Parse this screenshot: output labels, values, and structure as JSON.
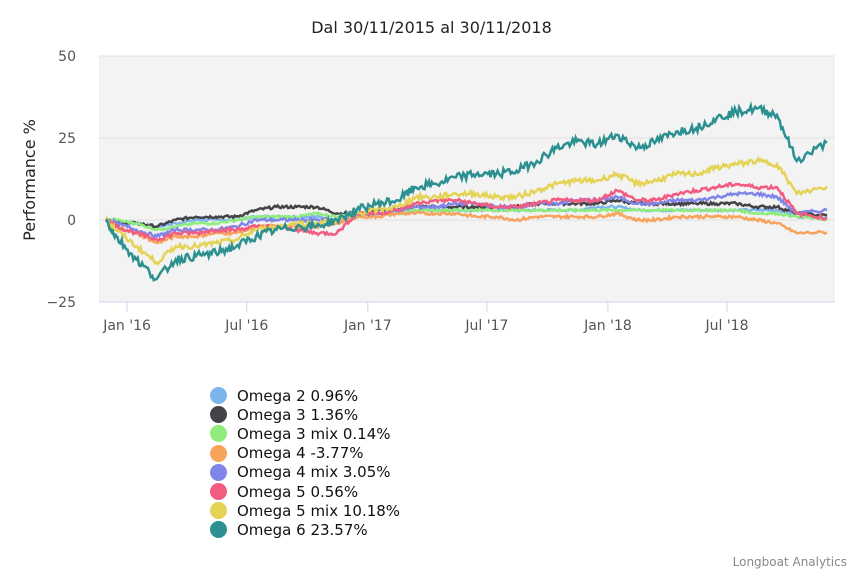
{
  "chart_data": {
    "type": "line",
    "title": "Dal 30/11/2015 al 30/11/2018",
    "ylabel": "Performance %",
    "xlabel": "",
    "ylim": [
      -25,
      50
    ],
    "yticks": [
      "50",
      "25",
      "0",
      "−25"
    ],
    "ytick_values": [
      50,
      25,
      0,
      -25
    ],
    "xticks": [
      "Jan '16",
      "Jul '16",
      "Jan '17",
      "Jul '17",
      "Jan '18",
      "Jul '18"
    ],
    "xtick_dates": [
      "2016-01-01",
      "2016-07-01",
      "2017-01-01",
      "2017-07-01",
      "2018-01-01",
      "2018-07-01"
    ],
    "xrange": [
      "2015-11-30",
      "2018-11-30"
    ],
    "grid": true,
    "legend_position": "bottom-left",
    "x": [
      "2015-11",
      "2015-12",
      "2016-01",
      "2016-02",
      "2016-03",
      "2016-04",
      "2016-05",
      "2016-06",
      "2016-07",
      "2016-08",
      "2016-09",
      "2016-10",
      "2016-11",
      "2016-12",
      "2017-01",
      "2017-02",
      "2017-03",
      "2017-04",
      "2017-05",
      "2017-06",
      "2017-07",
      "2017-08",
      "2017-09",
      "2017-10",
      "2017-11",
      "2017-12",
      "2018-01",
      "2018-02",
      "2018-03",
      "2018-04",
      "2018-05",
      "2018-06",
      "2018-07",
      "2018-08",
      "2018-09",
      "2018-10",
      "2018-11"
    ],
    "series": [
      {
        "name": "Omega 2",
        "label": "Omega 2 0.96%",
        "color": "#7cb5ec",
        "values": [
          0,
          -1,
          -1,
          -2,
          -1,
          0,
          0,
          0,
          1,
          1,
          1,
          1,
          0,
          2,
          2,
          2,
          3,
          3,
          3,
          3,
          3,
          3,
          3,
          3,
          3,
          4,
          4,
          3,
          3,
          3,
          3,
          3,
          3,
          3,
          3,
          1,
          0.96
        ]
      },
      {
        "name": "Omega 3",
        "label": "Omega 3 1.36%",
        "color": "#434348",
        "values": [
          0,
          -1,
          -1,
          -2,
          0,
          1,
          1,
          1,
          3,
          4,
          4,
          4,
          2,
          2,
          3,
          3,
          4,
          4,
          4,
          4,
          4,
          4,
          5,
          5,
          5,
          5,
          6,
          5,
          5,
          5,
          5,
          5,
          5,
          4,
          4,
          2,
          1.36
        ]
      },
      {
        "name": "Omega 3 mix",
        "label": "Omega 3 mix 0.14%",
        "color": "#90ed7d",
        "values": [
          0,
          0,
          -1,
          -3,
          -2,
          -1,
          -1,
          0,
          1,
          1,
          1,
          2,
          1,
          2,
          2,
          2,
          3,
          3,
          3,
          3,
          3,
          3,
          3,
          3,
          3,
          3,
          3,
          3,
          3,
          3,
          3,
          3,
          3,
          2,
          2,
          1,
          0.14
        ]
      },
      {
        "name": "Omega 4",
        "label": "Omega 4 -3.77%",
        "color": "#f7a35c",
        "values": [
          0,
          -2,
          -4,
          -7,
          -5,
          -5,
          -4,
          -4,
          -2,
          -2,
          -2,
          -2,
          -1,
          1,
          1,
          2,
          2,
          2,
          2,
          1,
          1,
          0,
          1,
          1,
          1,
          1,
          2,
          0,
          0,
          1,
          1,
          1,
          1,
          0,
          -1,
          -4,
          -3.77
        ]
      },
      {
        "name": "Omega 4 mix",
        "label": "Omega 4 mix 3.05%",
        "color": "#8085e9",
        "values": [
          0,
          -1,
          -3,
          -5,
          -3,
          -3,
          -3,
          -2,
          0,
          0,
          0,
          0,
          0,
          2,
          2,
          3,
          4,
          4,
          5,
          5,
          4,
          4,
          5,
          5,
          6,
          6,
          7,
          5,
          5,
          6,
          6,
          7,
          8,
          8,
          7,
          2,
          3.05
        ]
      },
      {
        "name": "Omega 5",
        "label": "Omega 5 0.56%",
        "color": "#f15c80",
        "values": [
          0,
          -2,
          -4,
          -6,
          -4,
          -4,
          -3,
          -3,
          -2,
          -2,
          -3,
          -4,
          -4,
          2,
          2,
          3,
          5,
          6,
          6,
          5,
          4,
          4,
          5,
          6,
          6,
          6,
          9,
          6,
          6,
          8,
          9,
          10,
          11,
          10,
          10,
          2,
          0.56
        ]
      },
      {
        "name": "Omega 5 mix",
        "label": "Omega 5 mix 10.18%",
        "color": "#e4d354",
        "values": [
          0,
          -3,
          -8,
          -13,
          -8,
          -8,
          -7,
          -6,
          -3,
          -2,
          -1,
          -1,
          0,
          2,
          3,
          4,
          7,
          7,
          8,
          8,
          7,
          7,
          9,
          11,
          12,
          12,
          14,
          11,
          12,
          14,
          14,
          16,
          17,
          18,
          17,
          8,
          10.18
        ]
      },
      {
        "name": "Omega 6",
        "label": "Omega 6 23.57%",
        "color": "#2b908f",
        "values": [
          0,
          -5,
          -12,
          -18,
          -12,
          -11,
          -10,
          -8,
          -5,
          -3,
          -2,
          -2,
          0,
          3,
          5,
          6,
          10,
          11,
          13,
          14,
          14,
          15,
          18,
          22,
          24,
          23,
          26,
          22,
          24,
          27,
          28,
          31,
          33,
          34,
          32,
          18,
          23.57
        ]
      }
    ]
  },
  "credits": "Longboat Analytics"
}
